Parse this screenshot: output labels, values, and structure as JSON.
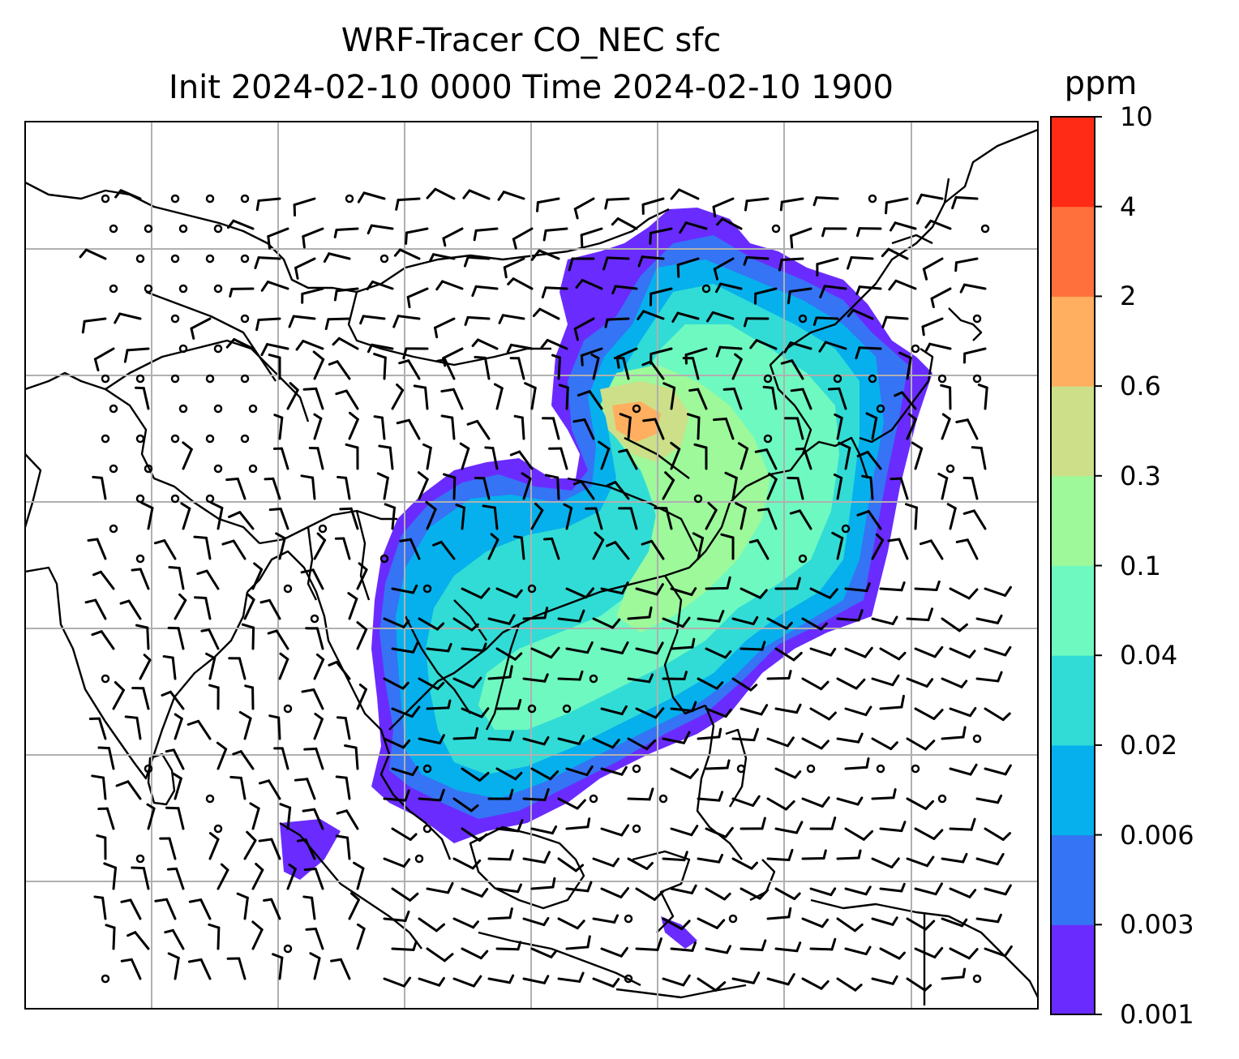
{
  "title": {
    "line1": "WRF-Tracer CO_NEC sfc",
    "line2": "Init 2024-02-10 0000 Time 2024-02-10 1900"
  },
  "colorbar": {
    "unit": "ppm",
    "levels": [
      "0.001",
      "0.003",
      "0.006",
      "0.02",
      "0.04",
      "0.1",
      "0.3",
      "0.6",
      "2",
      "4",
      "10"
    ],
    "colors": [
      "#6a2bff",
      "#3574f4",
      "#06b0ec",
      "#31dcd6",
      "#6ef9c0",
      "#9df99a",
      "#cddf88",
      "#ffaf5f",
      "#ff703d",
      "#ff2b17"
    ]
  },
  "map": {
    "gridlines": true,
    "features": [
      "coastlines",
      "country-borders",
      "co-tracer-field",
      "wind-barbs"
    ]
  }
}
